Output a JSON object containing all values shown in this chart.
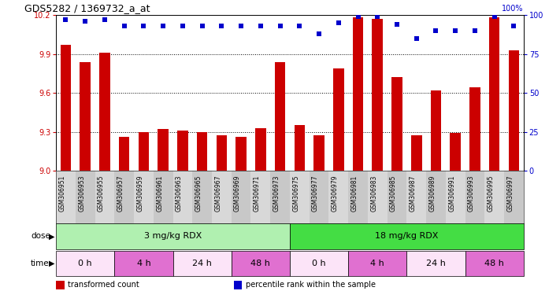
{
  "title": "GDS5282 / 1369732_a_at",
  "gsm_labels": [
    "GSM306951",
    "GSM306953",
    "GSM306955",
    "GSM306957",
    "GSM306959",
    "GSM306961",
    "GSM306963",
    "GSM306965",
    "GSM306967",
    "GSM306969",
    "GSM306971",
    "GSM306973",
    "GSM306975",
    "GSM306977",
    "GSM306979",
    "GSM306981",
    "GSM306983",
    "GSM306985",
    "GSM306987",
    "GSM306989",
    "GSM306991",
    "GSM306993",
    "GSM306995",
    "GSM306997"
  ],
  "bar_values": [
    9.97,
    9.84,
    9.91,
    9.26,
    9.3,
    9.32,
    9.31,
    9.3,
    9.27,
    9.26,
    9.33,
    9.84,
    9.35,
    9.27,
    9.79,
    10.18,
    10.17,
    9.72,
    9.27,
    9.62,
    9.29,
    9.64,
    10.18,
    9.93
  ],
  "percentile_values": [
    97,
    96,
    97,
    93,
    93,
    93,
    93,
    93,
    93,
    93,
    93,
    93,
    93,
    88,
    95,
    99,
    99,
    94,
    85,
    90,
    90,
    90,
    99,
    93
  ],
  "ymin": 9.0,
  "ymax": 10.2,
  "yticks": [
    9.0,
    9.3,
    9.6,
    9.9,
    10.2
  ],
  "right_yticks": [
    0,
    25,
    50,
    75,
    100
  ],
  "bar_color": "#cc0000",
  "dot_color": "#0000cc",
  "background_color": "#ffffff",
  "dose_row": {
    "label": "dose",
    "groups": [
      {
        "text": "3 mg/kg RDX",
        "start": 0,
        "end": 12,
        "color": "#b0f0b0"
      },
      {
        "text": "18 mg/kg RDX",
        "start": 12,
        "end": 24,
        "color": "#44dd44"
      }
    ]
  },
  "time_row": {
    "label": "time",
    "groups": [
      {
        "text": "0 h",
        "start": 0,
        "end": 3,
        "color": "#fce4f8"
      },
      {
        "text": "4 h",
        "start": 3,
        "end": 6,
        "color": "#e070d0"
      },
      {
        "text": "24 h",
        "start": 6,
        "end": 9,
        "color": "#fce4f8"
      },
      {
        "text": "48 h",
        "start": 9,
        "end": 12,
        "color": "#e070d0"
      },
      {
        "text": "0 h",
        "start": 12,
        "end": 15,
        "color": "#fce4f8"
      },
      {
        "text": "4 h",
        "start": 15,
        "end": 18,
        "color": "#e070d0"
      },
      {
        "text": "24 h",
        "start": 18,
        "end": 21,
        "color": "#fce4f8"
      },
      {
        "text": "48 h",
        "start": 21,
        "end": 24,
        "color": "#e070d0"
      }
    ]
  },
  "legend": [
    {
      "label": "transformed count",
      "color": "#cc0000"
    },
    {
      "label": "percentile rank within the sample",
      "color": "#0000cc"
    }
  ]
}
